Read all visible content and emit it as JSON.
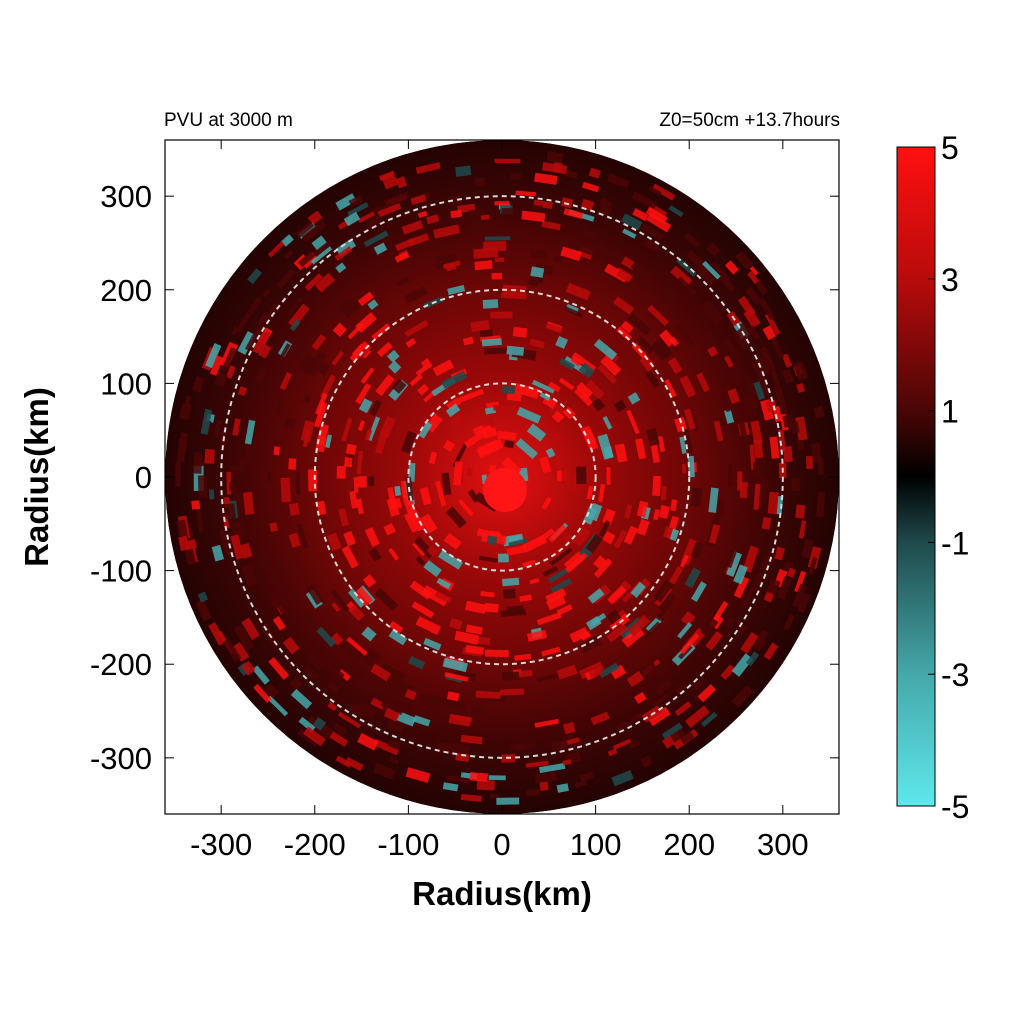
{
  "chart_data": {
    "type": "heatmap",
    "title_left": "PVU at  3000 m",
    "title_right": "Z0=50cm  +13.7hours",
    "xlabel": "Radius(km)",
    "ylabel": "Radius(km)",
    "xlim": [
      -360,
      360
    ],
    "ylim": [
      -360,
      360
    ],
    "x_ticks": [
      -300,
      -200,
      -100,
      0,
      100,
      200,
      300
    ],
    "y_ticks": [
      300,
      200,
      100,
      0,
      -100,
      -200,
      -300
    ],
    "x_tick_labels": [
      "-300",
      "-200",
      "-100",
      "0",
      "100",
      "200",
      "300"
    ],
    "y_tick_labels": [
      "300",
      "200",
      "100",
      "0",
      "-100",
      "-200",
      "-300"
    ],
    "data_domain_radius": 360,
    "reference_circles_km": [
      100,
      200,
      300
    ],
    "colorbar": {
      "min": -5,
      "max": 5,
      "tick_values": [
        5,
        3,
        1,
        -1,
        -3,
        -5
      ],
      "tick_labels": [
        "5",
        "3",
        "1",
        "-1",
        "-3",
        "-5"
      ],
      "stops": [
        {
          "value": -5,
          "color": "#5ee8ec"
        },
        {
          "value": -3,
          "color": "#45a8aa"
        },
        {
          "value": -1,
          "color": "#1f4a4b"
        },
        {
          "value": 0,
          "color": "#000000"
        },
        {
          "value": 1,
          "color": "#4a0606"
        },
        {
          "value": 3,
          "color": "#b80b0b"
        },
        {
          "value": 5,
          "color": "#ff1010"
        }
      ]
    },
    "grid": false,
    "legend": "right"
  }
}
